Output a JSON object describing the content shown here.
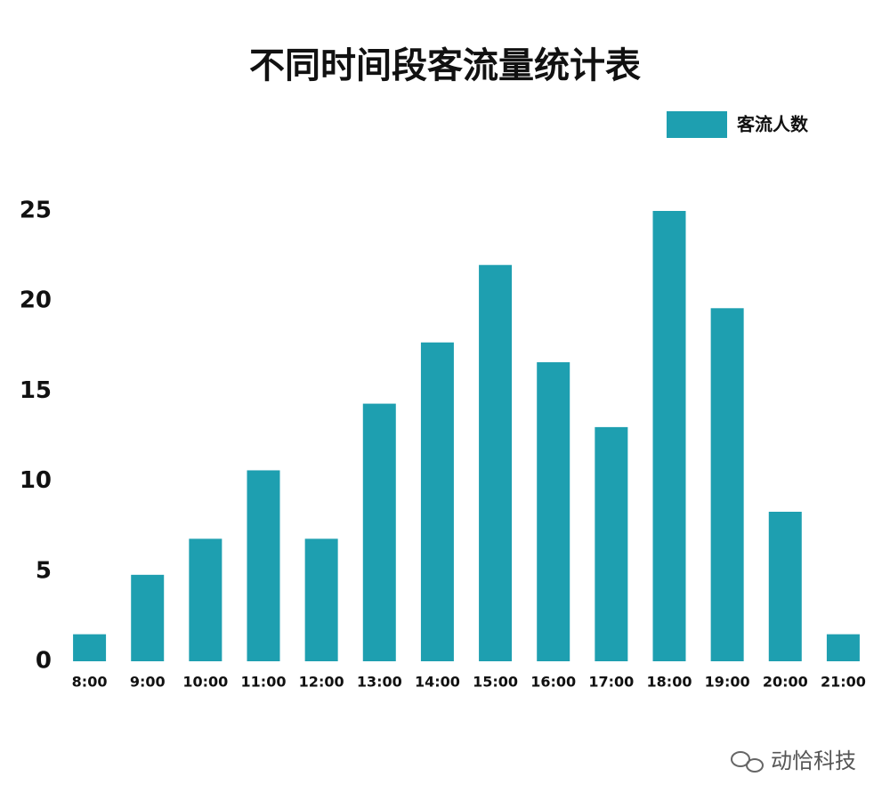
{
  "chart_data": {
    "type": "bar",
    "title": "不同时间段客流量统计表",
    "categories": [
      "8:00",
      "9:00",
      "10:00",
      "11:00",
      "12:00",
      "13:00",
      "14:00",
      "15:00",
      "16:00",
      "17:00",
      "18:00",
      "19:00",
      "20:00",
      "21:00"
    ],
    "series": [
      {
        "name": "客流人数",
        "color": "#1e9fb0",
        "values": [
          1.5,
          4.8,
          6.8,
          10.6,
          6.8,
          14.3,
          17.7,
          22,
          16.6,
          13,
          25,
          19.6,
          8.3,
          1.5
        ]
      }
    ],
    "ylim": [
      0,
      25
    ],
    "yticks": [
      0,
      5,
      10,
      15,
      20,
      25
    ],
    "grid": false,
    "legend": "top-right",
    "watermark": "动恰科技"
  }
}
